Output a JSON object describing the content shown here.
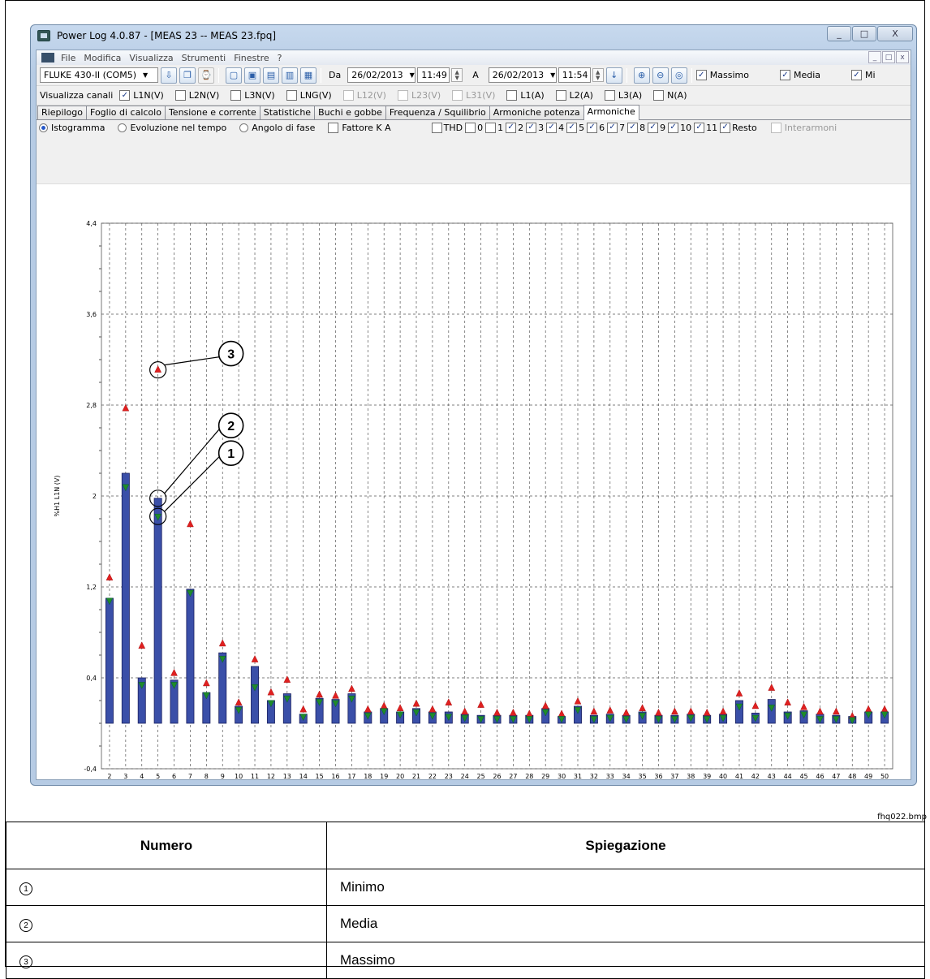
{
  "window": {
    "title": "Power Log 4.0.87 - [MEAS 23 -- MEAS 23.fpq]",
    "buttons": [
      "_",
      "□",
      "X"
    ]
  },
  "menu": {
    "items": [
      "File",
      "Modifica",
      "Visualizza",
      "Strumenti",
      "Finestre",
      "?"
    ],
    "mdi_buttons": [
      "_",
      "□",
      "x"
    ]
  },
  "toolbar": {
    "device": "FLUKE 430-II (COM5)",
    "from_label": "Da",
    "from_date": "26/02/2013",
    "from_time": "11:49",
    "to_label": "A",
    "to_date": "26/02/2013",
    "to_time": "11:54",
    "checks": [
      {
        "label": "Massimo",
        "checked": true
      },
      {
        "label": "Media",
        "checked": true
      },
      {
        "label": "Mi",
        "checked": true
      }
    ]
  },
  "channels": {
    "label": "Visualizza canali",
    "items": [
      {
        "label": "L1N(V)",
        "checked": true,
        "enabled": true
      },
      {
        "label": "L2N(V)",
        "checked": false,
        "enabled": true
      },
      {
        "label": "L3N(V)",
        "checked": false,
        "enabled": true
      },
      {
        "label": "LNG(V)",
        "checked": false,
        "enabled": true
      },
      {
        "label": "L12(V)",
        "checked": false,
        "enabled": false
      },
      {
        "label": "L23(V)",
        "checked": false,
        "enabled": false
      },
      {
        "label": "L31(V)",
        "checked": false,
        "enabled": false
      },
      {
        "label": "L1(A)",
        "checked": false,
        "enabled": true
      },
      {
        "label": "L2(A)",
        "checked": false,
        "enabled": true
      },
      {
        "label": "L3(A)",
        "checked": false,
        "enabled": true
      },
      {
        "label": "N(A)",
        "checked": false,
        "enabled": true
      }
    ]
  },
  "tabs": [
    "Riepilogo",
    "Foglio di calcolo",
    "Tensione e corrente",
    "Statistiche",
    "Buchi e gobbe",
    "Frequenza / Squilibrio",
    "Armoniche potenza",
    "Armoniche"
  ],
  "active_tab": "Armoniche",
  "view_options": {
    "radios": [
      {
        "label": "Istogramma",
        "selected": true
      },
      {
        "label": "Evoluzione nel tempo",
        "selected": false
      },
      {
        "label": "Angolo di fase",
        "selected": false
      }
    ],
    "kfactor": {
      "label": "Fattore K A",
      "checked": false
    },
    "harmonics": [
      {
        "label": "THD",
        "checked": false
      },
      {
        "label": "0",
        "checked": false
      },
      {
        "label": "1",
        "checked": false
      },
      {
        "label": "2",
        "checked": true
      },
      {
        "label": "3",
        "checked": true
      },
      {
        "label": "4",
        "checked": true
      },
      {
        "label": "5",
        "checked": true
      },
      {
        "label": "6",
        "checked": true
      },
      {
        "label": "7",
        "checked": true
      },
      {
        "label": "8",
        "checked": true
      },
      {
        "label": "9",
        "checked": true
      },
      {
        "label": "10",
        "checked": true
      },
      {
        "label": "11",
        "checked": true
      },
      {
        "label": "Resto",
        "checked": true
      }
    ],
    "interharmonics": {
      "label": "Interarmoni",
      "checked": false
    }
  },
  "chart_data": {
    "type": "bar",
    "ylabel": "%H1 L1N (V)",
    "ylim": [
      -0.4,
      4.4
    ],
    "yticks": [
      "4,4",
      "3,6",
      "2,8",
      "2",
      "1,2",
      "0,4",
      "-0,4"
    ],
    "categories": [
      "2",
      "3",
      "4",
      "5",
      "6",
      "7",
      "8",
      "9",
      "10",
      "11",
      "12",
      "13",
      "14",
      "15",
      "16",
      "17",
      "18",
      "19",
      "20",
      "21",
      "22",
      "23",
      "24",
      "25",
      "26",
      "27",
      "28",
      "29",
      "30",
      "31",
      "32",
      "33",
      "34",
      "35",
      "36",
      "37",
      "38",
      "39",
      "40",
      "41",
      "42",
      "43",
      "44",
      "45",
      "46",
      "47",
      "48",
      "49",
      "50"
    ],
    "series": [
      {
        "name": "Media",
        "values": [
          1.1,
          2.2,
          0.4,
          1.98,
          0.38,
          1.18,
          0.27,
          0.62,
          0.15,
          0.5,
          0.2,
          0.26,
          0.08,
          0.22,
          0.21,
          0.26,
          0.1,
          0.13,
          0.1,
          0.13,
          0.1,
          0.1,
          0.08,
          0.07,
          0.07,
          0.07,
          0.07,
          0.13,
          0.06,
          0.15,
          0.07,
          0.08,
          0.07,
          0.1,
          0.07,
          0.07,
          0.08,
          0.07,
          0.08,
          0.2,
          0.09,
          0.21,
          0.1,
          0.11,
          0.08,
          0.07,
          0.06,
          0.1,
          0.1
        ],
        "color": "#3a4fa8"
      },
      {
        "name": "Massimo",
        "values": [
          1.28,
          2.77,
          0.68,
          3.11,
          0.44,
          1.75,
          0.35,
          0.7,
          0.18,
          0.56,
          0.27,
          0.38,
          0.12,
          0.25,
          0.24,
          0.3,
          0.12,
          0.15,
          0.13,
          0.17,
          0.12,
          0.18,
          0.1,
          0.16,
          0.09,
          0.09,
          0.08,
          0.15,
          0.08,
          0.19,
          0.1,
          0.11,
          0.09,
          0.13,
          0.09,
          0.1,
          0.1,
          0.09,
          0.1,
          0.26,
          0.15,
          0.31,
          0.18,
          0.14,
          0.1,
          0.1,
          0.06,
          0.12,
          0.12
        ],
        "color": "#e02020"
      },
      {
        "name": "Minimo",
        "values": [
          1.08,
          2.08,
          0.34,
          1.82,
          0.34,
          1.15,
          0.25,
          0.57,
          0.12,
          0.32,
          0.18,
          0.22,
          0.06,
          0.19,
          0.18,
          0.22,
          0.07,
          0.11,
          0.08,
          0.1,
          0.07,
          0.06,
          0.05,
          0.04,
          0.04,
          0.04,
          0.04,
          0.1,
          0.04,
          0.12,
          0.04,
          0.05,
          0.04,
          0.07,
          0.04,
          0.04,
          0.05,
          0.04,
          0.05,
          0.15,
          0.05,
          0.14,
          0.07,
          0.08,
          0.04,
          0.04,
          0.03,
          0.08,
          0.08
        ],
        "color": "#1f8a2a"
      }
    ],
    "callouts": [
      "1",
      "2",
      "3"
    ],
    "grid": true
  },
  "image_caption": "fhq022.bmp",
  "legend_table": {
    "headers": [
      "Numero",
      "Spiegazione"
    ],
    "rows": [
      {
        "num": "1",
        "text": "Minimo"
      },
      {
        "num": "2",
        "text": "Media"
      },
      {
        "num": "3",
        "text": "Massimo"
      }
    ]
  }
}
